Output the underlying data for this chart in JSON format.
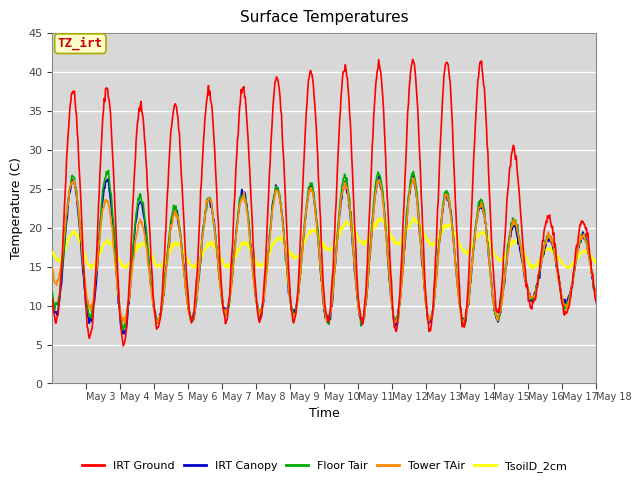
{
  "title": "Surface Temperatures",
  "xlabel": "Time",
  "ylabel": "Temperature (C)",
  "ylim": [
    0,
    45
  ],
  "background_color": "#ffffff",
  "plot_bg_color": "#d8d8d8",
  "grid_color": "#ffffff",
  "series": {
    "IRT Ground": {
      "color": "#ff0000",
      "lw": 1.2
    },
    "IRT Canopy": {
      "color": "#0000cc",
      "lw": 1.2
    },
    "Floor Tair": {
      "color": "#00aa00",
      "lw": 1.2
    },
    "Tower TAir": {
      "color": "#ff8800",
      "lw": 1.2
    },
    "TsoilD_2cm": {
      "color": "#ffff00",
      "lw": 1.5
    }
  },
  "xtick_labels": [
    "May 3",
    "May 4",
    "May 5",
    "May 6",
    "May 7",
    "May 8",
    "May 9",
    "May 10",
    "May 11",
    "May 12",
    "May 13",
    "May 14",
    "May 15",
    "May 16",
    "May 17",
    "May 18"
  ],
  "annotation_text": "TZ_irt",
  "annotation_color": "#cc0000",
  "annotation_bg": "#ffffcc",
  "annotation_border": "#aaaa00"
}
